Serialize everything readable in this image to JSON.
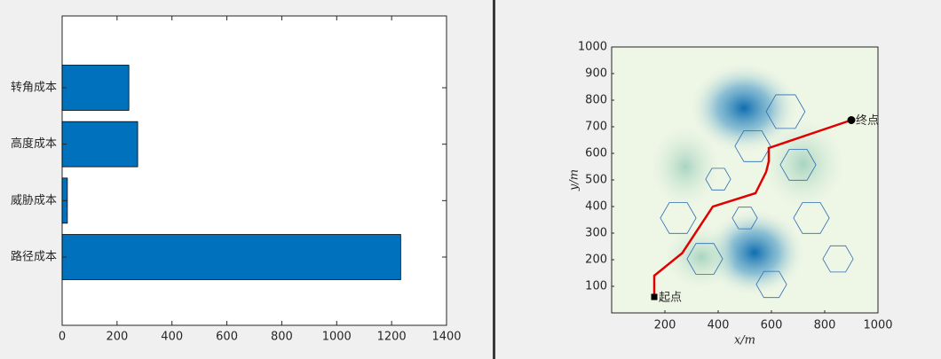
{
  "chart_data": [
    {
      "type": "barh",
      "categories": [
        "路径成本",
        "威胁成本",
        "高度成本",
        "转角成本"
      ],
      "values": [
        1233,
        19,
        275,
        243
      ],
      "color": "#0072bd",
      "xlim": [
        0,
        1400
      ],
      "xticks": [
        0,
        200,
        400,
        600,
        800,
        1000,
        1200,
        1400
      ]
    },
    {
      "type": "line",
      "x": [
        160,
        160,
        265,
        380,
        540,
        580,
        590,
        590,
        900
      ],
      "values": [
        60,
        140,
        225,
        400,
        450,
        530,
        570,
        620,
        725
      ],
      "color": "#e00000",
      "xlabel": "x/m",
      "ylabel": "y/m",
      "xlim": [
        0,
        1000
      ],
      "ylim": [
        0,
        1000
      ],
      "xticks": [
        200,
        400,
        600,
        800,
        1000
      ],
      "yticks": [
        100,
        200,
        300,
        400,
        500,
        600,
        700,
        800,
        900,
        1000
      ],
      "annotations": [
        {
          "text": "起点",
          "x": 160,
          "y": 60
        },
        {
          "text": "终点",
          "x": 900,
          "y": 725
        }
      ],
      "obstacles": [
        {
          "x": 653,
          "y": 757,
          "r": 73
        },
        {
          "x": 530,
          "y": 627,
          "r": 67
        },
        {
          "x": 700,
          "y": 557,
          "r": 67
        },
        {
          "x": 400,
          "y": 503,
          "r": 47
        },
        {
          "x": 250,
          "y": 357,
          "r": 67
        },
        {
          "x": 500,
          "y": 357,
          "r": 47
        },
        {
          "x": 750,
          "y": 357,
          "r": 67
        },
        {
          "x": 350,
          "y": 203,
          "r": 67
        },
        {
          "x": 850,
          "y": 203,
          "r": 57
        },
        {
          "x": 600,
          "y": 107,
          "r": 57
        }
      ],
      "obstacle_color": "#2b6cb0"
    }
  ]
}
